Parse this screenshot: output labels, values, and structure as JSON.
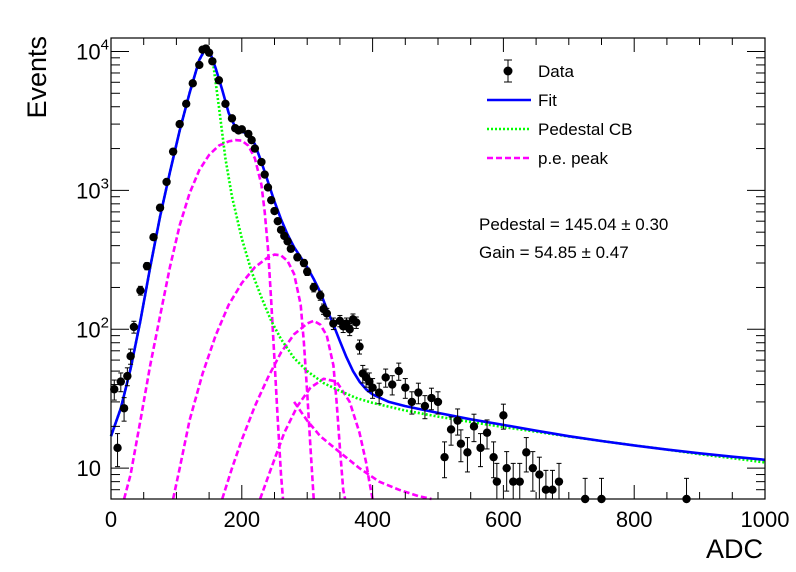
{
  "chart_data": {
    "type": "scatter",
    "xlabel": "ADC",
    "ylabel": "Events",
    "xlim": [
      0,
      1000
    ],
    "ylim": [
      6,
      12500
    ],
    "y_scale": "log",
    "grid": false,
    "legend_position": "top-right",
    "x_ticks": [
      {
        "value": 0,
        "label": "0"
      },
      {
        "value": 200,
        "label": "200"
      },
      {
        "value": 400,
        "label": "400"
      },
      {
        "value": 600,
        "label": "600"
      },
      {
        "value": 800,
        "label": "800"
      },
      {
        "value": 1000,
        "label": "1000"
      }
    ],
    "y_ticks": [
      {
        "value": 10,
        "base": "10",
        "exp": ""
      },
      {
        "value": 100,
        "base": "10",
        "exp": "2"
      },
      {
        "value": 1000,
        "base": "10",
        "exp": "3"
      },
      {
        "value": 10000,
        "base": "10",
        "exp": "4"
      }
    ],
    "legend": [
      {
        "label": "Data",
        "style": "marker",
        "color": "#000000"
      },
      {
        "label": "Fit",
        "style": "solid",
        "color": "#0000ff"
      },
      {
        "label": "Pedestal CB",
        "style": "dotted",
        "color": "#00ff00"
      },
      {
        "label": "p.e. peak",
        "style": "dashed",
        "color": "#ff00ff"
      }
    ],
    "annotations": [
      "Pedestal = 145.04 ± 0.30",
      "Gain = 54.85 ± 0.47"
    ],
    "series": [
      {
        "name": "Data",
        "kind": "points",
        "color": "#000000",
        "points": [
          [
            5,
            37
          ],
          [
            10,
            14
          ],
          [
            15,
            42
          ],
          [
            20,
            27
          ],
          [
            25,
            46
          ],
          [
            30,
            64
          ],
          [
            35,
            104
          ],
          [
            45,
            190
          ],
          [
            55,
            285
          ],
          [
            65,
            460
          ],
          [
            75,
            750
          ],
          [
            85,
            1150
          ],
          [
            95,
            1900
          ],
          [
            105,
            3000
          ],
          [
            115,
            4200
          ],
          [
            125,
            5900
          ],
          [
            135,
            8000
          ],
          [
            140,
            10300
          ],
          [
            145,
            10500
          ],
          [
            150,
            9800
          ],
          [
            155,
            8500
          ],
          [
            165,
            6200
          ],
          [
            175,
            4200
          ],
          [
            185,
            3300
          ],
          [
            190,
            2800
          ],
          [
            195,
            2700
          ],
          [
            200,
            2750
          ],
          [
            210,
            2550
          ],
          [
            215,
            2300
          ],
          [
            220,
            2000
          ],
          [
            230,
            1600
          ],
          [
            235,
            1300
          ],
          [
            240,
            1050
          ],
          [
            245,
            850
          ],
          [
            250,
            710
          ],
          [
            255,
            600
          ],
          [
            260,
            520
          ],
          [
            265,
            470
          ],
          [
            270,
            430
          ],
          [
            275,
            380
          ],
          [
            285,
            330
          ],
          [
            295,
            300
          ],
          [
            300,
            260
          ],
          [
            310,
            200
          ],
          [
            320,
            175
          ],
          [
            325,
            140
          ],
          [
            330,
            130
          ],
          [
            340,
            110
          ],
          [
            350,
            115
          ],
          [
            355,
            105
          ],
          [
            360,
            110
          ],
          [
            365,
            100
          ],
          [
            370,
            118
          ],
          [
            375,
            112
          ],
          [
            380,
            75
          ],
          [
            385,
            48
          ],
          [
            390,
            45
          ],
          [
            395,
            42
          ],
          [
            400,
            38
          ],
          [
            410,
            35
          ],
          [
            420,
            45
          ],
          [
            430,
            40
          ],
          [
            440,
            50
          ],
          [
            450,
            38
          ],
          [
            460,
            30
          ],
          [
            470,
            35
          ],
          [
            480,
            28
          ],
          [
            490,
            32
          ],
          [
            500,
            30
          ],
          [
            510,
            12
          ],
          [
            520,
            19
          ],
          [
            530,
            22
          ],
          [
            535,
            15
          ],
          [
            545,
            13
          ],
          [
            555,
            20
          ],
          [
            565,
            14
          ],
          [
            575,
            18
          ],
          [
            585,
            12
          ],
          [
            590,
            8
          ],
          [
            600,
            24
          ],
          [
            605,
            10
          ],
          [
            615,
            8
          ],
          [
            625,
            8
          ],
          [
            635,
            13
          ],
          [
            645,
            10
          ],
          [
            655,
            9
          ],
          [
            665,
            7
          ],
          [
            675,
            7
          ],
          [
            685,
            8
          ],
          [
            725,
            6
          ],
          [
            750,
            6
          ],
          [
            880,
            6
          ]
        ]
      },
      {
        "name": "Fit",
        "kind": "line",
        "color": "#0000ff",
        "points": [
          [
            0,
            17
          ],
          [
            15,
            27
          ],
          [
            30,
            52
          ],
          [
            45,
            115
          ],
          [
            60,
            280
          ],
          [
            75,
            650
          ],
          [
            90,
            1350
          ],
          [
            105,
            2700
          ],
          [
            120,
            5000
          ],
          [
            135,
            8700
          ],
          [
            145,
            10600
          ],
          [
            150,
            10300
          ],
          [
            160,
            7600
          ],
          [
            170,
            5300
          ],
          [
            180,
            3600
          ],
          [
            190,
            2850
          ],
          [
            200,
            2650
          ],
          [
            210,
            2550
          ],
          [
            220,
            2150
          ],
          [
            230,
            1600
          ],
          [
            240,
            1150
          ],
          [
            250,
            830
          ],
          [
            260,
            620
          ],
          [
            270,
            480
          ],
          [
            280,
            390
          ],
          [
            290,
            330
          ],
          [
            300,
            280
          ],
          [
            310,
            230
          ],
          [
            320,
            185
          ],
          [
            330,
            140
          ],
          [
            340,
            108
          ],
          [
            350,
            82
          ],
          [
            360,
            63
          ],
          [
            370,
            50
          ],
          [
            380,
            42
          ],
          [
            390,
            37
          ],
          [
            400,
            34
          ],
          [
            425,
            30
          ],
          [
            450,
            28
          ],
          [
            500,
            25
          ],
          [
            550,
            22.5
          ],
          [
            600,
            20.5
          ],
          [
            650,
            18.6
          ],
          [
            700,
            17
          ],
          [
            750,
            15.7
          ],
          [
            800,
            14.6
          ],
          [
            850,
            13.6
          ],
          [
            900,
            12.8
          ],
          [
            950,
            12.1
          ],
          [
            1000,
            11.5
          ]
        ]
      },
      {
        "name": "Pedestal CB",
        "kind": "line",
        "color": "#00ff00",
        "points": [
          [
            0,
            17
          ],
          [
            15,
            27
          ],
          [
            30,
            52
          ],
          [
            45,
            115
          ],
          [
            60,
            280
          ],
          [
            75,
            650
          ],
          [
            90,
            1350
          ],
          [
            105,
            2700
          ],
          [
            120,
            5000
          ],
          [
            135,
            8700
          ],
          [
            145,
            10500
          ],
          [
            155,
            9000
          ],
          [
            165,
            4000
          ],
          [
            175,
            1700
          ],
          [
            185,
            900
          ],
          [
            200,
            450
          ],
          [
            215,
            260
          ],
          [
            230,
            170
          ],
          [
            245,
            115
          ],
          [
            260,
            85
          ],
          [
            280,
            62
          ],
          [
            300,
            50
          ],
          [
            325,
            41
          ],
          [
            350,
            36
          ],
          [
            375,
            32
          ],
          [
            400,
            29.5
          ],
          [
            450,
            26
          ],
          [
            500,
            23.5
          ],
          [
            550,
            21.5
          ],
          [
            600,
            19.8
          ],
          [
            650,
            18.3
          ],
          [
            700,
            16.9
          ],
          [
            750,
            15.7
          ],
          [
            800,
            14.6
          ],
          [
            850,
            13.6
          ],
          [
            900,
            12.6
          ],
          [
            950,
            11.8
          ],
          [
            1000,
            11
          ]
        ]
      },
      {
        "name": "p.e. peak 1",
        "kind": "line",
        "color": "#ff00ff",
        "points": [
          [
            20,
            6
          ],
          [
            30,
            9
          ],
          [
            45,
            22
          ],
          [
            60,
            55
          ],
          [
            75,
            125
          ],
          [
            90,
            280
          ],
          [
            105,
            560
          ],
          [
            120,
            950
          ],
          [
            135,
            1400
          ],
          [
            150,
            1800
          ],
          [
            165,
            2100
          ],
          [
            180,
            2250
          ],
          [
            190,
            2300
          ],
          [
            200,
            2280
          ],
          [
            210,
            2100
          ],
          [
            220,
            1700
          ],
          [
            230,
            1100
          ],
          [
            235,
            700
          ],
          [
            240,
            380
          ],
          [
            245,
            160
          ],
          [
            250,
            60
          ],
          [
            255,
            22
          ],
          [
            260,
            9
          ],
          [
            263,
            6
          ]
        ]
      },
      {
        "name": "p.e. peak 2",
        "kind": "line",
        "color": "#ff00ff",
        "points": [
          [
            95,
            6
          ],
          [
            105,
            10
          ],
          [
            120,
            22
          ],
          [
            140,
            48
          ],
          [
            160,
            90
          ],
          [
            180,
            150
          ],
          [
            200,
            215
          ],
          [
            220,
            280
          ],
          [
            240,
            330
          ],
          [
            250,
            345
          ],
          [
            260,
            340
          ],
          [
            270,
            310
          ],
          [
            280,
            250
          ],
          [
            290,
            150
          ],
          [
            295,
            80
          ],
          [
            300,
            35
          ],
          [
            305,
            14
          ],
          [
            310,
            6
          ]
        ]
      },
      {
        "name": "p.e. peak 3",
        "kind": "line",
        "color": "#ff00ff",
        "points": [
          [
            170,
            6
          ],
          [
            185,
            10
          ],
          [
            200,
            16
          ],
          [
            220,
            28
          ],
          [
            240,
            45
          ],
          [
            260,
            68
          ],
          [
            280,
            92
          ],
          [
            300,
            110
          ],
          [
            310,
            115
          ],
          [
            320,
            108
          ],
          [
            330,
            90
          ],
          [
            340,
            55
          ],
          [
            345,
            30
          ],
          [
            350,
            14
          ],
          [
            355,
            7
          ],
          [
            358,
            6
          ]
        ]
      },
      {
        "name": "p.e. peak 4",
        "kind": "line",
        "color": "#ff00ff",
        "points": [
          [
            228,
            6
          ],
          [
            245,
            10
          ],
          [
            265,
            18
          ],
          [
            285,
            28
          ],
          [
            305,
            38
          ],
          [
            325,
            44
          ],
          [
            345,
            42
          ],
          [
            365,
            30
          ],
          [
            380,
            18
          ],
          [
            390,
            11
          ],
          [
            395,
            8
          ],
          [
            400,
            6
          ]
        ]
      },
      {
        "name": "p.e. peak 5",
        "kind": "line",
        "color": "#ff00ff",
        "points": [
          [
            280,
            30
          ],
          [
            300,
            22
          ],
          [
            320,
            17
          ],
          [
            350,
            13
          ],
          [
            380,
            10
          ],
          [
            410,
            8
          ],
          [
            440,
            7
          ],
          [
            470,
            6.3
          ],
          [
            490,
            6
          ]
        ]
      }
    ]
  }
}
